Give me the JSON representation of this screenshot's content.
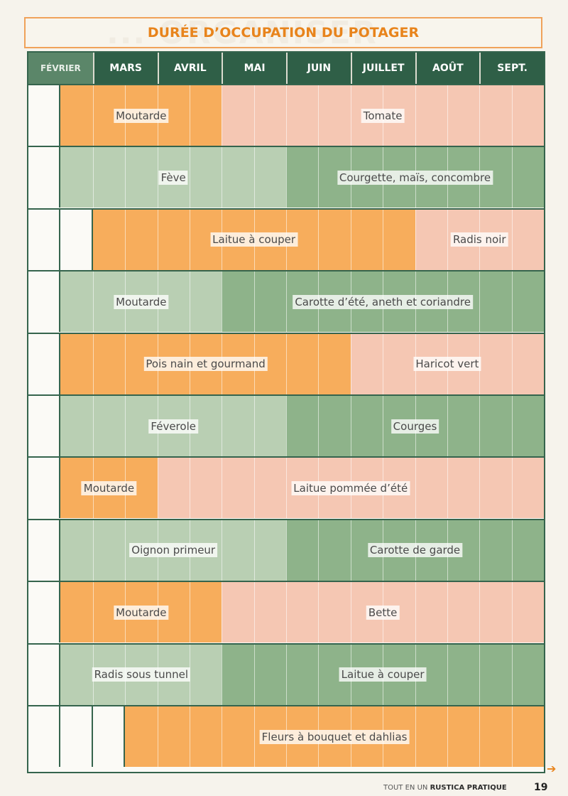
{
  "title": "DURÉE D’OCCUPATION DU POTAGER",
  "months": [
    "FÉVRIER",
    "MARS",
    "AVRIL",
    "MAI",
    "JUIN",
    "JUILLET",
    "AOÛT",
    "SEPT."
  ],
  "palette": {
    "orange": "#f7ad5c",
    "pink": "#f5c7b3",
    "light_green": "#b9cfb3",
    "green": "#8eb38a",
    "dark_green_header": "#2f5f47",
    "title_orange": "#e8841c"
  },
  "rows": [
    {
      "segments": [
        {
          "label": "Moutarde",
          "color": "orange",
          "start": 1,
          "end": 6
        },
        {
          "label": "Tomate",
          "color": "pink",
          "start": 6,
          "end": 16
        }
      ]
    },
    {
      "segments": [
        {
          "label": "Fève",
          "color": "light_green",
          "start": 1,
          "end": 8
        },
        {
          "label": "Courgette, maïs, concombre",
          "color": "green",
          "start": 8,
          "end": 16
        }
      ]
    },
    {
      "segments": [
        {
          "label": "Laitue à couper",
          "color": "orange",
          "start": 2,
          "end": 12
        },
        {
          "label": "Radis noir",
          "color": "pink",
          "start": 12,
          "end": 16
        }
      ]
    },
    {
      "segments": [
        {
          "label": "Moutarde",
          "color": "light_green",
          "start": 1,
          "end": 6
        },
        {
          "label": "Carotte d’été, aneth et coriandre",
          "color": "green",
          "start": 6,
          "end": 16
        }
      ]
    },
    {
      "segments": [
        {
          "label": "Pois nain et gourmand",
          "color": "orange",
          "start": 1,
          "end": 10
        },
        {
          "label": "Haricot vert",
          "color": "pink",
          "start": 10,
          "end": 16
        }
      ]
    },
    {
      "segments": [
        {
          "label": "Féverole",
          "color": "light_green",
          "start": 1,
          "end": 8
        },
        {
          "label": "Courges",
          "color": "green",
          "start": 8,
          "end": 16
        }
      ]
    },
    {
      "segments": [
        {
          "label": "Moutarde",
          "color": "orange",
          "start": 1,
          "end": 4
        },
        {
          "label": "Laitue pommée d’été",
          "color": "pink",
          "start": 4,
          "end": 16
        }
      ]
    },
    {
      "segments": [
        {
          "label": "Oignon primeur",
          "color": "light_green",
          "start": 1,
          "end": 8
        },
        {
          "label": "Carotte de garde",
          "color": "green",
          "start": 8,
          "end": 16
        }
      ]
    },
    {
      "segments": [
        {
          "label": "Moutarde",
          "color": "orange",
          "start": 1,
          "end": 6
        },
        {
          "label": "Bette",
          "color": "pink",
          "start": 6,
          "end": 16
        }
      ]
    },
    {
      "segments": [
        {
          "label": "Radis sous tunnel",
          "color": "light_green",
          "start": 1,
          "end": 6
        },
        {
          "label": "Laitue à couper",
          "color": "green",
          "start": 6,
          "end": 16
        }
      ]
    },
    {
      "segments": [
        {
          "label": "Fleurs à bouquet et dahlias",
          "color": "orange",
          "start": 3,
          "end": 16
        }
      ]
    }
  ],
  "footer": {
    "prefix": "TOUT EN UN",
    "brand": "RUSTICA PRATIQUE",
    "page": "19"
  }
}
